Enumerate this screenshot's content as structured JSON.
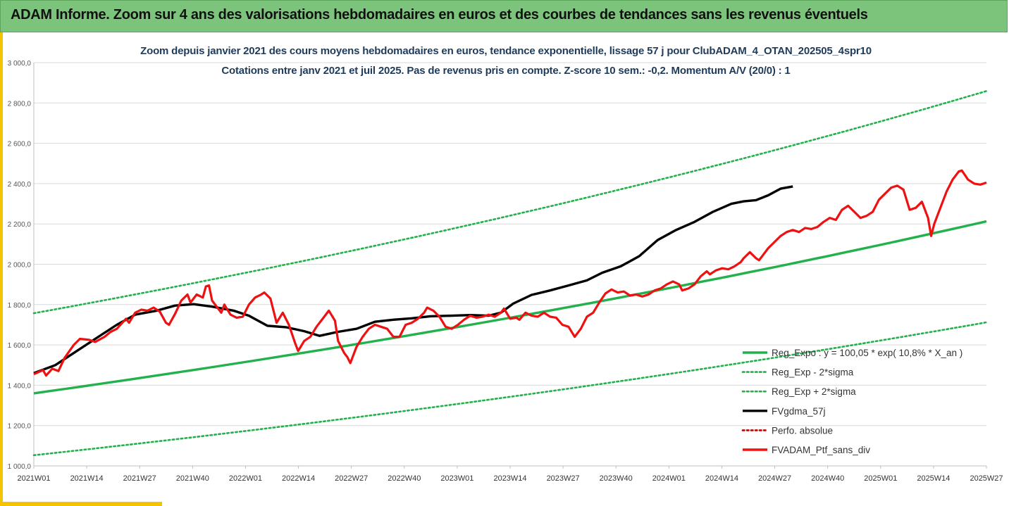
{
  "header": {
    "title": "ADAM Informe. Zoom sur 4 ans des valorisations hebdomadaires en euros et des courbes de tendances sans les revenus éventuels"
  },
  "colors": {
    "header_bg": "#7cc47c",
    "accent": "#f5c400",
    "reg_green": "#22b14c",
    "ma_black": "#000000",
    "price_red": "#ee1111",
    "perf_red": "#c00000"
  },
  "chart_data": {
    "type": "line",
    "title": "Zoom depuis janvier 2021 des cours moyens hebdomadaires  en euros, tendance exponentielle, lissage 57 j pour ClubADAM_4_OTAN_202505_4spr10",
    "subtitle": "Cotations entre janv 2021 et juil 2025. Pas de revenus pris en compte. Z-score 10 sem.: -0,2. Momentum A/V (20/0) : 1",
    "ylim": [
      1000,
      3000
    ],
    "yticks": [
      "1 000,0",
      "1 200,0",
      "1 400,0",
      "1 600,0",
      "1 800,0",
      "2 000,0",
      "2 200,0",
      "2 400,0",
      "2 600,0",
      "2 800,0",
      "3 000,0"
    ],
    "xticks": [
      "2021W01",
      "2021W14",
      "2021W27",
      "2021W40",
      "2022W01",
      "2022W14",
      "2022W27",
      "2022W40",
      "2023W01",
      "2023W14",
      "2023W27",
      "2023W40",
      "2024W01",
      "2024W14",
      "2024W27",
      "2024W40",
      "2025W01",
      "2025W14",
      "2025W27"
    ],
    "grid": "horizontal",
    "legend_position": "bottom-right",
    "series": [
      {
        "name": "Reg_Expo : y = 100,05 * exp( 10,8% *  X_an )",
        "style": "solid",
        "color": "#22b14c",
        "start": 1360,
        "end": 2213
      },
      {
        "name": "Reg_Exp - 2*sigma",
        "style": "dotted",
        "color": "#22b14c",
        "start": 1053,
        "end": 1712
      },
      {
        "name": "Reg_Exp + 2*sigma",
        "style": "dotted",
        "color": "#22b14c",
        "start": 1757,
        "end": 2859
      },
      {
        "name": "FVgdma_57j",
        "style": "solid",
        "color": "#000000",
        "points": [
          [
            0,
            1460
          ],
          [
            7,
            1500
          ],
          [
            13,
            1560
          ],
          [
            20,
            1630
          ],
          [
            27,
            1700
          ],
          [
            33,
            1750
          ],
          [
            40,
            1770
          ],
          [
            46,
            1795
          ],
          [
            52,
            1802
          ],
          [
            58,
            1790
          ],
          [
            65,
            1770
          ],
          [
            70,
            1745
          ],
          [
            76,
            1695
          ],
          [
            82,
            1688
          ],
          [
            88,
            1668
          ],
          [
            93,
            1645
          ],
          [
            99,
            1665
          ],
          [
            105,
            1680
          ],
          [
            111,
            1715
          ],
          [
            117,
            1725
          ],
          [
            123,
            1732
          ],
          [
            129,
            1742
          ],
          [
            136,
            1745
          ],
          [
            142,
            1748
          ],
          [
            148,
            1745
          ],
          [
            152,
            1760
          ],
          [
            156,
            1805
          ],
          [
            162,
            1848
          ],
          [
            168,
            1870
          ],
          [
            174,
            1895
          ],
          [
            180,
            1920
          ],
          [
            185,
            1958
          ],
          [
            191,
            1990
          ],
          [
            197,
            2040
          ],
          [
            203,
            2120
          ],
          [
            209,
            2170
          ],
          [
            215,
            2210
          ],
          [
            221,
            2260
          ],
          [
            227,
            2300
          ],
          [
            231,
            2312
          ],
          [
            235,
            2318
          ],
          [
            239,
            2342
          ],
          [
            243,
            2375
          ],
          [
            247,
            2386
          ]
        ]
      },
      {
        "name": "Perfo. absolue",
        "style": "dotted",
        "color": "#c00000",
        "points": []
      },
      {
        "name": "FVADAM_Ptf_sans_div",
        "style": "solid",
        "color": "#ee1111",
        "points": [
          [
            0,
            1455
          ],
          [
            3,
            1475
          ],
          [
            4,
            1448
          ],
          [
            6,
            1482
          ],
          [
            8,
            1470
          ],
          [
            10,
            1535
          ],
          [
            13,
            1600
          ],
          [
            15,
            1630
          ],
          [
            18,
            1625
          ],
          [
            20,
            1615
          ],
          [
            23,
            1640
          ],
          [
            25,
            1665
          ],
          [
            27,
            1680
          ],
          [
            30,
            1730
          ],
          [
            31,
            1710
          ],
          [
            33,
            1760
          ],
          [
            35,
            1775
          ],
          [
            37,
            1770
          ],
          [
            39,
            1785
          ],
          [
            41,
            1765
          ],
          [
            43,
            1710
          ],
          [
            44,
            1700
          ],
          [
            46,
            1755
          ],
          [
            48,
            1820
          ],
          [
            50,
            1850
          ],
          [
            51,
            1810
          ],
          [
            53,
            1850
          ],
          [
            55,
            1835
          ],
          [
            56,
            1890
          ],
          [
            57,
            1895
          ],
          [
            58,
            1820
          ],
          [
            59,
            1800
          ],
          [
            61,
            1760
          ],
          [
            62,
            1800
          ],
          [
            64,
            1750
          ],
          [
            66,
            1735
          ],
          [
            68,
            1740
          ],
          [
            70,
            1800
          ],
          [
            72,
            1835
          ],
          [
            74,
            1850
          ],
          [
            75,
            1860
          ],
          [
            77,
            1830
          ],
          [
            79,
            1710
          ],
          [
            81,
            1760
          ],
          [
            83,
            1700
          ],
          [
            85,
            1610
          ],
          [
            86,
            1570
          ],
          [
            88,
            1620
          ],
          [
            90,
            1640
          ],
          [
            92,
            1690
          ],
          [
            94,
            1730
          ],
          [
            96,
            1770
          ],
          [
            98,
            1720
          ],
          [
            99,
            1620
          ],
          [
            101,
            1560
          ],
          [
            102,
            1540
          ],
          [
            103,
            1510
          ],
          [
            105,
            1590
          ],
          [
            107,
            1640
          ],
          [
            109,
            1680
          ],
          [
            111,
            1700
          ],
          [
            113,
            1690
          ],
          [
            115,
            1680
          ],
          [
            117,
            1640
          ],
          [
            119,
            1640
          ],
          [
            121,
            1700
          ],
          [
            123,
            1710
          ],
          [
            125,
            1730
          ],
          [
            127,
            1760
          ],
          [
            128,
            1785
          ],
          [
            130,
            1770
          ],
          [
            132,
            1740
          ],
          [
            134,
            1690
          ],
          [
            136,
            1680
          ],
          [
            138,
            1700
          ],
          [
            140,
            1725
          ],
          [
            142,
            1745
          ],
          [
            144,
            1735
          ],
          [
            146,
            1740
          ],
          [
            148,
            1750
          ],
          [
            150,
            1740
          ],
          [
            152,
            1760
          ],
          [
            153,
            1780
          ],
          [
            155,
            1730
          ],
          [
            157,
            1735
          ],
          [
            158,
            1725
          ],
          [
            160,
            1760
          ],
          [
            162,
            1745
          ],
          [
            164,
            1740
          ],
          [
            166,
            1760
          ],
          [
            168,
            1740
          ],
          [
            170,
            1735
          ],
          [
            172,
            1700
          ],
          [
            174,
            1690
          ],
          [
            176,
            1640
          ],
          [
            178,
            1680
          ],
          [
            180,
            1740
          ],
          [
            182,
            1760
          ],
          [
            184,
            1810
          ],
          [
            186,
            1855
          ],
          [
            188,
            1875
          ],
          [
            190,
            1860
          ],
          [
            192,
            1865
          ],
          [
            194,
            1845
          ],
          [
            196,
            1850
          ],
          [
            198,
            1840
          ],
          [
            200,
            1850
          ],
          [
            202,
            1870
          ],
          [
            204,
            1880
          ],
          [
            206,
            1900
          ],
          [
            208,
            1915
          ],
          [
            210,
            1900
          ],
          [
            211,
            1870
          ],
          [
            213,
            1880
          ],
          [
            215,
            1900
          ],
          [
            217,
            1940
          ],
          [
            219,
            1965
          ],
          [
            220,
            1950
          ],
          [
            222,
            1970
          ],
          [
            224,
            1980
          ],
          [
            226,
            1975
          ],
          [
            228,
            1990
          ],
          [
            230,
            2010
          ],
          [
            231,
            2030
          ],
          [
            233,
            2060
          ],
          [
            235,
            2030
          ],
          [
            236,
            2020
          ],
          [
            238,
            2060
          ],
          [
            239,
            2080
          ],
          [
            241,
            2110
          ],
          [
            243,
            2140
          ],
          [
            245,
            2160
          ],
          [
            247,
            2170
          ],
          [
            249,
            2160
          ],
          [
            251,
            2180
          ],
          [
            253,
            2175
          ],
          [
            255,
            2185
          ],
          [
            257,
            2210
          ],
          [
            259,
            2230
          ],
          [
            261,
            2220
          ],
          [
            263,
            2270
          ],
          [
            265,
            2290
          ],
          [
            267,
            2260
          ],
          [
            269,
            2230
          ],
          [
            271,
            2240
          ],
          [
            273,
            2260
          ],
          [
            275,
            2320
          ],
          [
            277,
            2350
          ],
          [
            279,
            2380
          ],
          [
            281,
            2390
          ],
          [
            283,
            2370
          ],
          [
            285,
            2270
          ],
          [
            287,
            2280
          ],
          [
            289,
            2310
          ],
          [
            291,
            2230
          ],
          [
            292,
            2140
          ],
          [
            293,
            2200
          ],
          [
            295,
            2280
          ],
          [
            297,
            2360
          ],
          [
            299,
            2420
          ],
          [
            301,
            2460
          ],
          [
            302,
            2465
          ],
          [
            304,
            2420
          ],
          [
            306,
            2400
          ],
          [
            308,
            2395
          ],
          [
            310,
            2405
          ]
        ]
      }
    ]
  }
}
